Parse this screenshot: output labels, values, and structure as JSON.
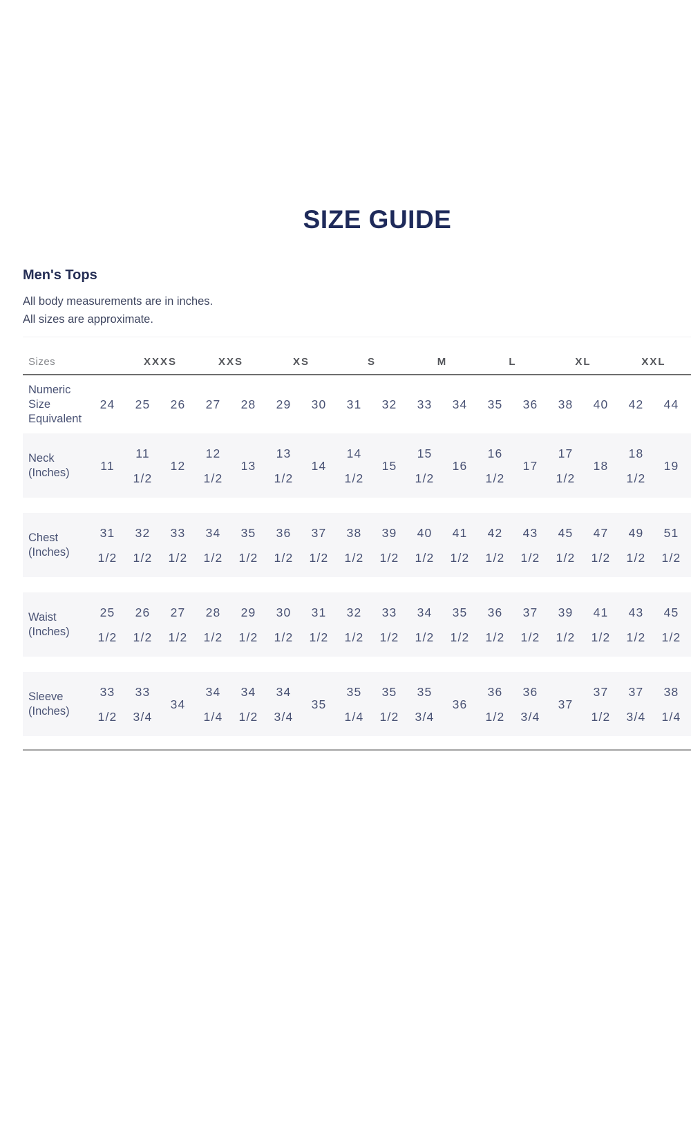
{
  "title": "SIZE GUIDE",
  "section": {
    "heading": "Men's Tops",
    "notes": [
      "All body measurements are in inches.",
      "All sizes are approximate."
    ]
  },
  "table": {
    "corner_label": "Sizes",
    "size_headers": [
      "XXXS",
      "XXS",
      "XS",
      "S",
      "M",
      "L",
      "XL",
      "XXL"
    ],
    "rows": [
      {
        "label": "Numeric Size Equivalent",
        "label_lines": [
          "Numeric",
          "Size",
          "Equivalent"
        ],
        "shaded": false,
        "values": [
          "24",
          "25",
          "26",
          "27",
          "28",
          "29",
          "30",
          "31",
          "32",
          "33",
          "34",
          "35",
          "36",
          "38",
          "40",
          "42",
          "44"
        ]
      },
      {
        "label": "Neck (Inches)",
        "label_lines": [
          "Neck",
          "(Inches)"
        ],
        "shaded": true,
        "values": [
          "11",
          "11 1/2",
          "12",
          "12 1/2",
          "13",
          "13 1/2",
          "14",
          "14 1/2",
          "15",
          "15 1/2",
          "16",
          "16 1/2",
          "17",
          "17 1/2",
          "18",
          "18 1/2",
          "19"
        ]
      },
      {
        "label": "Chest (Inches)",
        "label_lines": [
          "Chest",
          "(Inches)"
        ],
        "shaded": true,
        "values": [
          "31 1/2",
          "32 1/2",
          "33 1/2",
          "34 1/2",
          "35 1/2",
          "36 1/2",
          "37 1/2",
          "38 1/2",
          "39 1/2",
          "40 1/2",
          "41 1/2",
          "42 1/2",
          "43 1/2",
          "45 1/2",
          "47 1/2",
          "49 1/2",
          "51 1/2"
        ]
      },
      {
        "label": "Waist (Inches)",
        "label_lines": [
          "Waist",
          "(Inches)"
        ],
        "shaded": true,
        "values": [
          "25 1/2",
          "26 1/2",
          "27 1/2",
          "28 1/2",
          "29 1/2",
          "30 1/2",
          "31 1/2",
          "32 1/2",
          "33 1/2",
          "34 1/2",
          "35 1/2",
          "36 1/2",
          "37 1/2",
          "39 1/2",
          "41 1/2",
          "43 1/2",
          "45 1/2"
        ]
      },
      {
        "label": "Sleeve (Inches)",
        "label_lines": [
          "Sleeve",
          "(Inches)"
        ],
        "shaded": true,
        "values": [
          "33 1/2",
          "33 3/4",
          "34",
          "34 1/4",
          "34 1/2",
          "34 3/4",
          "35",
          "35 1/4",
          "35 1/2",
          "35 3/4",
          "36",
          "36 1/2",
          "36 3/4",
          "37",
          "37 1/2",
          "37 3/4",
          "38 1/4"
        ]
      }
    ]
  },
  "colors": {
    "title_navy": "#1e2a5a",
    "value_navy": "#495274",
    "header_gray": "#55575c",
    "sizes_muted_gray": "#85878b",
    "row_shade": "#f6f6f8",
    "header_rule": "#6e6e6e",
    "bottom_rule": "#a3a3a3"
  }
}
